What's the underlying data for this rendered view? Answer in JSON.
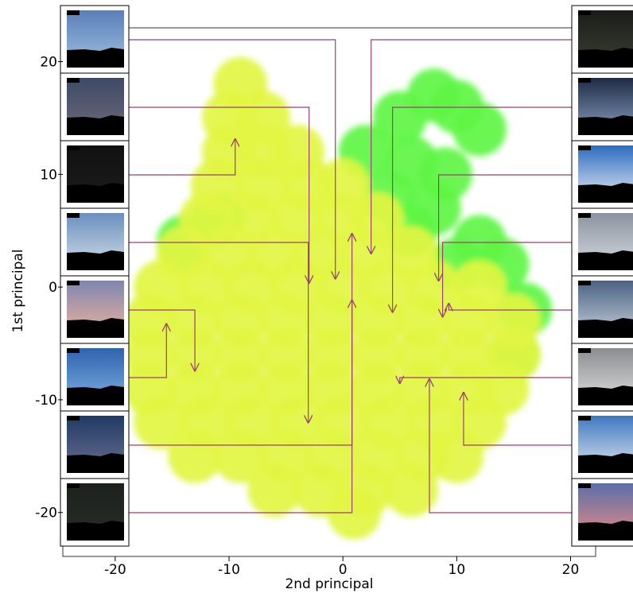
{
  "chart_data": {
    "type": "scatter",
    "xlabel": "2nd principal",
    "ylabel": "1st principal",
    "xlim": [
      -24.6,
      22.2
    ],
    "ylim": [
      -23.9,
      23.0
    ],
    "xticks": [
      -20,
      -10,
      0,
      10,
      20
    ],
    "yticks": [
      -20,
      -10,
      0,
      10,
      20
    ],
    "series": [
      {
        "color": "#5ef545",
        "x": [
          2,
          5,
          8,
          10,
          12,
          6,
          9,
          4,
          8,
          12,
          14,
          10,
          6,
          -14,
          -11,
          16,
          15
        ],
        "y": [
          12,
          15,
          17,
          16,
          14,
          11,
          10,
          8,
          7,
          4,
          2,
          2,
          5,
          4,
          6,
          -2,
          -6
        ]
      },
      {
        "color": "#e2f542",
        "x": [
          -9,
          -10,
          -7,
          -10,
          -7,
          -4,
          -11,
          -7,
          -3,
          0,
          -12,
          -8,
          -4,
          0,
          3,
          -14,
          -10,
          -6,
          -2,
          2,
          6,
          -16,
          -12,
          -8,
          -4,
          0,
          4,
          8,
          12,
          -17,
          -13,
          -9,
          -5,
          -1,
          3,
          7,
          11,
          15,
          -17,
          -13,
          -9,
          -5,
          -1,
          3,
          7,
          11,
          15,
          -17,
          -13,
          -9,
          -5,
          -1,
          3,
          7,
          11,
          14,
          -16,
          -12,
          -8,
          -4,
          0,
          4,
          8,
          12,
          -13,
          -9,
          -5,
          -1,
          3,
          7,
          10,
          -6,
          -2,
          2,
          6,
          1
        ],
        "y": [
          18,
          15,
          15,
          12,
          12,
          12,
          9,
          9,
          9,
          9,
          6,
          6,
          6,
          6,
          6,
          3,
          3,
          3,
          3,
          3,
          3,
          0,
          0,
          0,
          0,
          0,
          0,
          0,
          0,
          -3,
          -3,
          -3,
          -3,
          -3,
          -3,
          -3,
          -3,
          -3,
          -6,
          -6,
          -6,
          -6,
          -6,
          -6,
          -6,
          -6,
          -6,
          -9,
          -9,
          -9,
          -9,
          -9,
          -9,
          -9,
          -9,
          -9,
          -12,
          -12,
          -12,
          -12,
          -12,
          -12,
          -12,
          -12,
          -15,
          -15,
          -15,
          -15,
          -15,
          -15,
          -15,
          -18,
          -18,
          -18,
          -18,
          -20
        ]
      }
    ],
    "annotations_left": [
      {
        "x": -0.66,
        "y": 0.67
      },
      {
        "x": -2.97,
        "y": 0.3
      },
      {
        "x": -9.46,
        "y": 13.2
      },
      {
        "x": -3.04,
        "y": -12.1
      },
      {
        "x": -13.0,
        "y": -7.5
      },
      {
        "x": -15.5,
        "y": -3.2
      },
      {
        "x": 0.8,
        "y": -1.1
      },
      {
        "x": 0.8,
        "y": 4.8
      }
    ],
    "annotations_right": [
      {
        "x": 2.48,
        "y": 2.9
      },
      {
        "x": 4.36,
        "y": -2.3
      },
      {
        "x": 8.41,
        "y": 0.5
      },
      {
        "x": 8.76,
        "y": -2.7
      },
      {
        "x": 9.3,
        "y": -1.4
      },
      {
        "x": 5.0,
        "y": -8.6
      },
      {
        "x": 10.6,
        "y": -9.3
      },
      {
        "x": 7.6,
        "y": -8.1
      }
    ]
  }
}
